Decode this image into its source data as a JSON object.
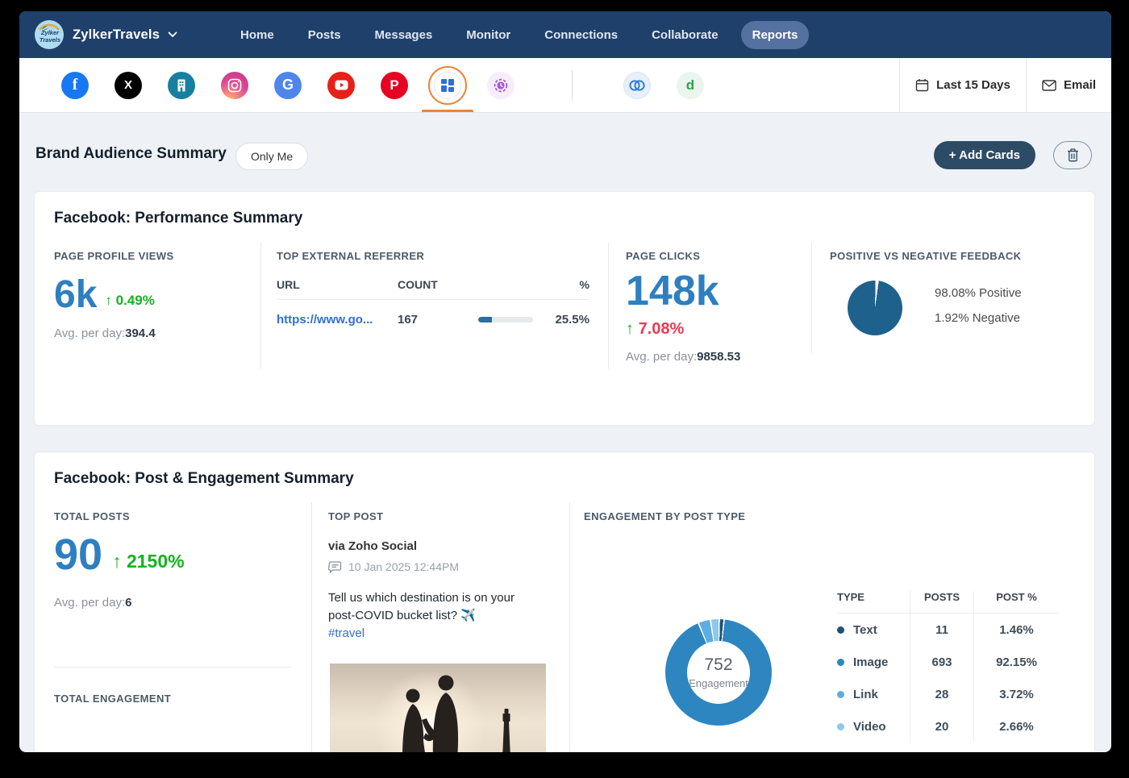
{
  "colors": {
    "nav_bg": "#1e406b",
    "accent_orange": "#ee8435",
    "metric_blue": "#2e7fc0",
    "positive_green": "#14b31e",
    "negative_red": "#e93a52",
    "link_blue": "#2e6fd3"
  },
  "nav": {
    "brand": "ZylkerTravels",
    "items": [
      "Home",
      "Posts",
      "Messages",
      "Monitor",
      "Connections",
      "Collaborate",
      "Reports"
    ],
    "active": "Reports"
  },
  "channel_bar": {
    "icons": [
      "facebook",
      "x-twitter",
      "company",
      "instagram",
      "google-my-business",
      "youtube",
      "pinterest",
      "all-networks",
      "history",
      "zoho-crm",
      "zoho-desk"
    ],
    "selected": "all-networks",
    "date_range": "Last 15 Days",
    "email": "Email"
  },
  "page_header": {
    "title": "Brand Audience Summary",
    "visibility": "Only Me",
    "add_cards": "+ Add Cards"
  },
  "performance_card": {
    "title": "Facebook: Performance Summary",
    "page_profile_views": {
      "label": "PAGE PROFILE VIEWS",
      "value": "6k",
      "change": "0.49%",
      "avg_label": "Avg. per day:",
      "avg_value": "394.4"
    },
    "top_external_referrer": {
      "label": "TOP EXTERNAL REFERRER",
      "col_url": "URL",
      "col_count": "COUNT",
      "col_percent": "%",
      "rows": [
        {
          "url": "https://www.go...",
          "count": "167",
          "percent": "25.5%",
          "bar_percent": 25.5
        }
      ]
    },
    "page_clicks": {
      "label": "PAGE CLICKS",
      "value": "148k",
      "change": "7.08%",
      "avg_label": "Avg. per day:",
      "avg_value": "9858.53"
    },
    "feedback": {
      "label": "POSITIVE VS NEGATIVE FEEDBACK",
      "positive_value": "98.08%",
      "positive_label": "Positive",
      "negative_value": "1.92%",
      "negative_label": "Negative"
    }
  },
  "engagement_card": {
    "title": "Facebook: Post & Engagement Summary",
    "total_posts": {
      "label": "TOTAL POSTS",
      "value": "90",
      "change": "2150%",
      "avg_label": "Avg. per day:",
      "avg_value": "6"
    },
    "total_engagement": {
      "label": "TOTAL ENGAGEMENT"
    },
    "top_post": {
      "label": "TOP POST",
      "via": "via Zoho Social",
      "date": "10 Jan 2025 12:44PM",
      "text": "Tell us which destination is on your post-COVID bucket list? ✈️",
      "hashtag": "#travel"
    },
    "post_type": {
      "label": "ENGAGEMENT BY POST TYPE",
      "center_value": "752",
      "center_label": "Engagement",
      "col_type": "TYPE",
      "col_posts": "POSTS",
      "col_percent": "POST %",
      "rows": [
        {
          "type": "Text",
          "posts": "11",
          "percent": "1.46%"
        },
        {
          "type": "Image",
          "posts": "693",
          "percent": "92.15%"
        },
        {
          "type": "Link",
          "posts": "28",
          "percent": "3.72%"
        },
        {
          "type": "Video",
          "posts": "20",
          "percent": "2.66%"
        }
      ]
    }
  },
  "chart_data": [
    {
      "id": "feedback_pie",
      "type": "pie",
      "title": "POSITIVE VS NEGATIVE FEEDBACK",
      "labels": [
        "Positive",
        "Negative"
      ],
      "values": [
        98.08,
        1.92
      ],
      "slice_colors": [
        "#1f618d",
        "#ffffff"
      ],
      "legend_position": "right"
    },
    {
      "id": "post_type_donut",
      "type": "pie",
      "title": "ENGAGEMENT BY POST TYPE",
      "labels": [
        "Text",
        "Image",
        "Link",
        "Video"
      ],
      "values": [
        1.46,
        92.15,
        3.72,
        2.66
      ],
      "posts": [
        11,
        693,
        28,
        20
      ],
      "total_engagement": 752,
      "slice_colors": [
        "#1a5276",
        "#2e86c1",
        "#5dade2",
        "#8ec9ea"
      ],
      "legend_position": "right"
    },
    {
      "id": "referrer_bar",
      "type": "bar",
      "title": "TOP EXTERNAL REFERRER",
      "categories": [
        "https://www.go..."
      ],
      "values": [
        25.5
      ],
      "counts": [
        167
      ],
      "ylim": [
        0,
        100
      ]
    }
  ]
}
